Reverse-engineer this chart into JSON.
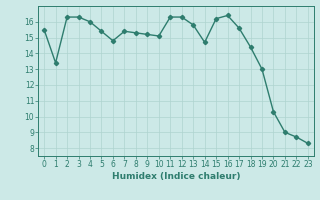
{
  "x": [
    0,
    1,
    2,
    3,
    4,
    5,
    6,
    7,
    8,
    9,
    10,
    11,
    12,
    13,
    14,
    15,
    16,
    17,
    18,
    19,
    20,
    21,
    22,
    23
  ],
  "y": [
    15.5,
    13.4,
    16.3,
    16.3,
    16.0,
    15.4,
    14.8,
    15.4,
    15.3,
    15.2,
    15.1,
    16.3,
    16.3,
    15.8,
    14.7,
    16.2,
    16.4,
    15.6,
    14.4,
    13.0,
    10.3,
    9.0,
    8.7,
    8.3
  ],
  "line_color": "#2e7d6e",
  "marker": "D",
  "marker_size": 2.2,
  "bg_color": "#cce9e7",
  "grid_color": "#afd4d0",
  "xlabel": "Humidex (Indice chaleur)",
  "ylim": [
    7.5,
    17.0
  ],
  "xlim": [
    -0.5,
    23.5
  ],
  "yticks": [
    8,
    9,
    10,
    11,
    12,
    13,
    14,
    15,
    16
  ],
  "xticks": [
    0,
    1,
    2,
    3,
    4,
    5,
    6,
    7,
    8,
    9,
    10,
    11,
    12,
    13,
    14,
    15,
    16,
    17,
    18,
    19,
    20,
    21,
    22,
    23
  ],
  "tick_fontsize": 5.5,
  "xlabel_fontsize": 6.5,
  "line_width": 1.0
}
